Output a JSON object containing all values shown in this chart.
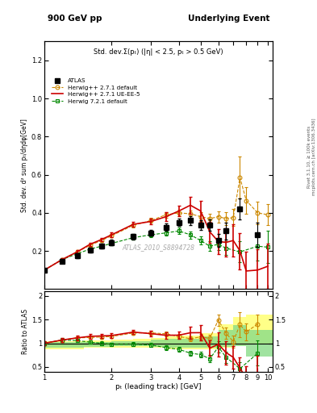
{
  "title_top_left": "900 GeV pp",
  "title_top_right": "Underlying Event",
  "main_title": "Std. dev.Σ(pₜ) (|η| < 2.5, pₜ > 0.5 GeV)",
  "ylabel_main": "Std. dev. d² sum pₜ/dηdφ[GeV]",
  "ylabel_ratio": "Ratio to ATLAS",
  "xlabel": "pₜ (leading track) [GeV]",
  "watermark": "ATLAS_2010_S8894728",
  "right_label1": "Rivet 3.1.10, ≥ 100k events",
  "right_label2": "mcplots.cern.ch [arXiv:1306.3436]",
  "atlas_x": [
    1.0,
    1.2,
    1.4,
    1.6,
    1.8,
    2.0,
    2.5,
    3.0,
    3.5,
    4.0,
    4.5,
    5.0,
    5.5,
    6.0,
    6.5,
    7.5,
    9.0
  ],
  "atlas_y": [
    0.1,
    0.145,
    0.175,
    0.205,
    0.225,
    0.245,
    0.275,
    0.295,
    0.325,
    0.35,
    0.36,
    0.335,
    0.335,
    0.255,
    0.305,
    0.42,
    0.285
  ],
  "atlas_yerr": [
    0.008,
    0.01,
    0.011,
    0.011,
    0.012,
    0.013,
    0.014,
    0.016,
    0.018,
    0.02,
    0.022,
    0.025,
    0.03,
    0.035,
    0.045,
    0.055,
    0.065
  ],
  "hw271_x": [
    1.0,
    1.2,
    1.4,
    1.6,
    1.8,
    2.0,
    2.5,
    3.0,
    3.5,
    4.0,
    4.5,
    5.0,
    5.5,
    6.0,
    6.5,
    7.0,
    7.5,
    8.0,
    9.0,
    10.0
  ],
  "hw271_y": [
    0.1,
    0.155,
    0.195,
    0.23,
    0.255,
    0.28,
    0.335,
    0.36,
    0.39,
    0.4,
    0.395,
    0.38,
    0.37,
    0.38,
    0.37,
    0.375,
    0.585,
    0.465,
    0.4,
    0.39
  ],
  "hw271_yerr": [
    0.004,
    0.005,
    0.006,
    0.007,
    0.008,
    0.009,
    0.011,
    0.013,
    0.015,
    0.017,
    0.019,
    0.022,
    0.025,
    0.03,
    0.035,
    0.045,
    0.11,
    0.07,
    0.06,
    0.055
  ],
  "hw271ue_x": [
    1.0,
    1.2,
    1.4,
    1.6,
    1.8,
    2.0,
    2.5,
    3.0,
    3.5,
    4.0,
    4.5,
    5.0,
    5.5,
    6.0,
    6.5,
    7.0,
    7.5,
    8.0,
    9.0,
    10.0
  ],
  "hw271ue_y": [
    0.1,
    0.155,
    0.195,
    0.235,
    0.26,
    0.285,
    0.34,
    0.355,
    0.38,
    0.41,
    0.44,
    0.41,
    0.3,
    0.25,
    0.245,
    0.255,
    0.2,
    0.095,
    0.1,
    0.12
  ],
  "hw271ue_yerr": [
    0.004,
    0.006,
    0.008,
    0.009,
    0.01,
    0.011,
    0.013,
    0.016,
    0.022,
    0.028,
    0.045,
    0.055,
    0.055,
    0.065,
    0.075,
    0.085,
    0.095,
    0.1,
    0.11,
    0.12
  ],
  "hw721_x": [
    1.0,
    1.2,
    1.4,
    1.6,
    1.8,
    2.0,
    2.5,
    3.0,
    3.5,
    4.0,
    4.5,
    5.0,
    5.5,
    6.0,
    6.5,
    7.5,
    9.0,
    10.0
  ],
  "hw721_y": [
    0.1,
    0.155,
    0.185,
    0.21,
    0.225,
    0.24,
    0.27,
    0.285,
    0.295,
    0.305,
    0.285,
    0.255,
    0.225,
    0.235,
    0.215,
    0.195,
    0.225,
    0.22
  ],
  "hw721_yerr": [
    0.004,
    0.005,
    0.006,
    0.007,
    0.008,
    0.009,
    0.011,
    0.013,
    0.015,
    0.017,
    0.019,
    0.022,
    0.025,
    0.03,
    0.035,
    0.055,
    0.075,
    0.085
  ],
  "color_atlas": "#000000",
  "color_hw271": "#cc8800",
  "color_hw271ue": "#cc0000",
  "color_hw721": "#008800",
  "xlim": [
    1.0,
    10.5
  ],
  "ylim_main": [
    0.0,
    1.3
  ],
  "ylim_ratio": [
    0.4,
    2.1
  ],
  "bin_edges": [
    1.0,
    1.5,
    2.0,
    2.5,
    3.0,
    3.5,
    4.0,
    5.0,
    6.0,
    7.0,
    8.0,
    9.0,
    10.5
  ],
  "yellow_lo": [
    0.88,
    0.9,
    0.91,
    0.91,
    0.9,
    0.88,
    0.87,
    0.88,
    0.9,
    0.95,
    0.98,
    0.98
  ],
  "yellow_hi": [
    1.04,
    1.06,
    1.08,
    1.1,
    1.12,
    1.14,
    1.16,
    1.22,
    1.4,
    1.55,
    1.6,
    1.6
  ],
  "green_lo": [
    0.91,
    0.93,
    0.94,
    0.94,
    0.93,
    0.91,
    0.9,
    0.9,
    0.92,
    0.94,
    0.72,
    0.72
  ],
  "green_hi": [
    1.02,
    1.03,
    1.04,
    1.05,
    1.07,
    1.09,
    1.1,
    1.15,
    1.28,
    1.38,
    1.28,
    1.28
  ]
}
